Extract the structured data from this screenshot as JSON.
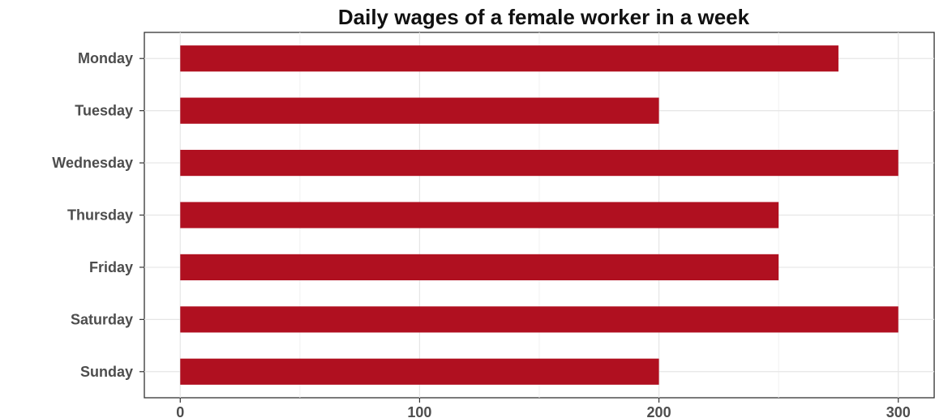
{
  "chart_data": {
    "type": "bar",
    "orientation": "horizontal",
    "title": "Daily wages of a female worker in a week",
    "xlabel": "",
    "ylabel": "",
    "categories": [
      "Monday",
      "Tuesday",
      "Wednesday",
      "Thursday",
      "Friday",
      "Saturday",
      "Sunday"
    ],
    "values": [
      275,
      200,
      300,
      250,
      250,
      300,
      200
    ],
    "xlim": [
      -15,
      315
    ],
    "xticks": [
      0,
      100,
      200,
      300
    ],
    "bar_color": "#b01020",
    "grid": true
  }
}
